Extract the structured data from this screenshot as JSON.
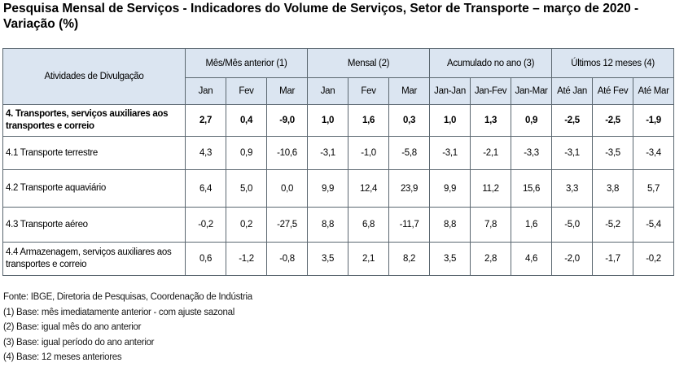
{
  "title": "Pesquisa Mensal de Serviços - Indicadores do Volume de Serviços, Setor de Transporte – março de 2020 - Variação (%)",
  "table": {
    "row_header": "Atividades de Divulgação",
    "groups": [
      "Mês/Mês anterior (1)",
      "Mensal (2)",
      "Acumulado no ano (3)",
      "Últimos 12 meses (4)"
    ],
    "subheaders": [
      "Jan",
      "Fev",
      "Mar",
      "Jan",
      "Fev",
      "Mar",
      "Jan-Jan",
      "Jan-Fev",
      "Jan-Mar",
      "Até Jan",
      "Até Fev",
      "Até Mar"
    ],
    "rows": [
      {
        "label": "4. Transportes, serviços auxiliares aos transportes e correio",
        "values": [
          "2,7",
          "0,4",
          "-9,0",
          "1,0",
          "1,6",
          "0,3",
          "1,0",
          "1,3",
          "0,9",
          "-2,5",
          "-2,5",
          "-1,9"
        ]
      },
      {
        "label": "4.1 Transporte terrestre",
        "values": [
          "4,3",
          "0,9",
          "-10,6",
          "-3,1",
          "-1,0",
          "-5,8",
          "-3,1",
          "-2,1",
          "-3,3",
          "-3,1",
          "-3,5",
          "-3,4"
        ]
      },
      {
        "label": "4.2 Transporte aquaviário",
        "values": [
          "6,4",
          "5,0",
          "0,0",
          "9,9",
          "12,4",
          "23,9",
          "9,9",
          "11,2",
          "15,6",
          "3,3",
          "3,8",
          "5,7"
        ]
      },
      {
        "label": "4.3 Transporte aéreo",
        "values": [
          "-0,2",
          "0,2",
          "-27,5",
          "8,8",
          "6,8",
          "-11,7",
          "8,8",
          "7,8",
          "1,6",
          "-5,0",
          "-5,2",
          "-5,4"
        ]
      },
      {
        "label": "4.4 Armazenagem, serviços auxiliares aos transportes e correio",
        "values": [
          "0,6",
          "-1,2",
          "-0,8",
          "3,5",
          "2,1",
          "8,2",
          "3,5",
          "2,8",
          "4,6",
          "-2,0",
          "-1,7",
          "-0,2"
        ]
      }
    ]
  },
  "notes": [
    "Fonte: IBGE, Diretoria de Pesquisas, Coordenação de Indústria",
    "(1) Base: mês imediatamente anterior - com ajuste sazonal",
    "(2) Base: igual mês do ano anterior",
    "(3) Base: igual período do ano anterior",
    "(4) Base: 12 meses anteriores"
  ]
}
